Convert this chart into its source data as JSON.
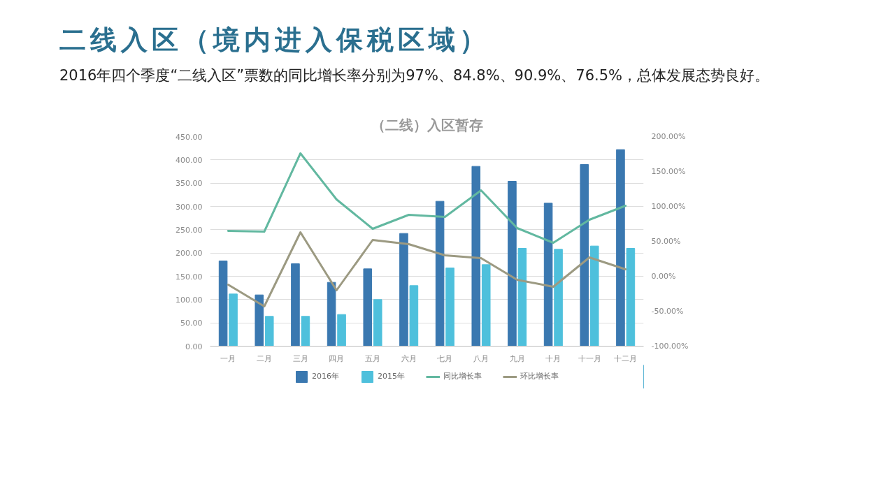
{
  "chart_data": {
    "type": "bar",
    "title": "（二线）入区暂存",
    "annotations": [
      "二线入区（境内进入保税区域）",
      "2016年四个季度“二线入区”票数的同比增长率分别为97%、84.8%、90.9%、76.5%，总体发展态势良好。"
    ],
    "categories": [
      "一月",
      "二月",
      "三月",
      "四月",
      "五月",
      "六月",
      "七月",
      "八月",
      "九月",
      "十月",
      "十一月",
      "十二月"
    ],
    "series": [
      {
        "name": "2016年",
        "color": "#3a78b0",
        "values": [
          183,
          110,
          177,
          137,
          166,
          242,
          311,
          386,
          354,
          307,
          390,
          422
        ]
      },
      {
        "name": "2015年",
        "color": "#4ec0dc",
        "values": [
          112,
          64,
          64,
          68,
          100,
          130,
          168,
          175,
          210,
          208,
          215,
          210
        ]
      },
      {
        "name": "同比增长率",
        "type": "line",
        "axis": "y2",
        "color": "#62b8a0",
        "values": [
          65,
          64,
          176,
          110,
          68,
          88,
          85,
          123,
          69,
          48,
          81,
          101
        ]
      },
      {
        "name": "环比增长率",
        "type": "line",
        "axis": "y2",
        "color": "#9c9a82",
        "values": [
          -12,
          -43,
          63,
          -20,
          52,
          46,
          30,
          26,
          -5,
          -15,
          27,
          10
        ]
      }
    ],
    "ylim": [
      0,
      450
    ],
    "yticks": [
      {
        "value": 0,
        "label": "0.00"
      },
      {
        "value": 50,
        "label": "50.00"
      },
      {
        "value": 100,
        "label": "100.00"
      },
      {
        "value": 150,
        "label": "150.00"
      },
      {
        "value": 200,
        "label": "200.00"
      },
      {
        "value": 250,
        "label": "250.00"
      },
      {
        "value": 300,
        "label": "300.00"
      },
      {
        "value": 350,
        "label": "350.00"
      },
      {
        "value": 400,
        "label": "400.00"
      },
      {
        "value": 450,
        "label": "450.00"
      }
    ],
    "y2lim": [
      -100,
      200
    ],
    "y2ticks": [
      {
        "value": -100,
        "label": "-100.00%"
      },
      {
        "value": -50,
        "label": "-50.00%"
      },
      {
        "value": 0,
        "label": "0.00%"
      },
      {
        "value": 50,
        "label": "50.00%"
      },
      {
        "value": 100,
        "label": "100.00%"
      },
      {
        "value": 150,
        "label": "150.00%"
      },
      {
        "value": 200,
        "label": "200.00%"
      }
    ],
    "grid": "y",
    "legend": "bottom",
    "line_style": "solid",
    "marker": "none"
  }
}
